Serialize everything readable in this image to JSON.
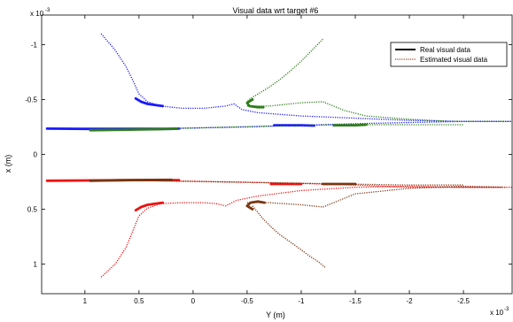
{
  "chart_data": {
    "type": "line",
    "title": "Visual data wrt target #6",
    "xlabel": "Y (m)",
    "ylabel": "x (m)",
    "x_exponent": "x 10",
    "x_exponent_power": "-3",
    "y_exponent": "x 10",
    "y_exponent_power": "-3",
    "xlim": [
      -2.95,
      1.4
    ],
    "ylim": [
      -1.27,
      1.27
    ],
    "x_reversed": true,
    "y_reversed": true,
    "x_ticks": [
      1,
      0.5,
      0,
      -0.5,
      -1,
      -1.5,
      -2,
      -2.5
    ],
    "x_tick_labels": [
      "1",
      "0.5",
      "0",
      "-0.5",
      "-1",
      "-1.5",
      "-2",
      "-2.5"
    ],
    "y_ticks": [
      -1,
      -0.5,
      0,
      0.5,
      1
    ],
    "y_tick_labels": [
      "-1",
      "-0.5",
      "0",
      "0.5",
      "1"
    ],
    "grid": false,
    "legend_position": "top-right",
    "legend": [
      {
        "label": "Real visual data",
        "style": "solid"
      },
      {
        "label": "Estimated visual data",
        "style": "dotted"
      }
    ],
    "colors": {
      "blue": "#1a1aff",
      "green": "#2e7d1a",
      "red": "#ee1111",
      "brown": "#7a3510"
    },
    "series": [
      {
        "color": "blue",
        "style": "dotted",
        "x": [
          0.85,
          0.72,
          0.62,
          0.55,
          0.5,
          0.42,
          0.3,
          0.1,
          -0.1,
          -0.3,
          -0.38,
          -0.45,
          -0.6,
          -1.0,
          -1.5,
          -2.0,
          -2.5,
          -2.95
        ],
        "y": [
          -1.1,
          -0.95,
          -0.8,
          -0.66,
          -0.55,
          -0.48,
          -0.44,
          -0.42,
          -0.42,
          -0.44,
          -0.46,
          -0.41,
          -0.38,
          -0.35,
          -0.33,
          -0.31,
          -0.3,
          -0.3
        ]
      },
      {
        "color": "blue",
        "style": "solid",
        "x": [
          0.53,
          0.48,
          0.42,
          0.35,
          0.28
        ],
        "y": [
          -0.51,
          -0.48,
          -0.46,
          -0.45,
          -0.44
        ]
      },
      {
        "color": "blue",
        "style": "solid",
        "x": [
          1.35,
          1.0,
          0.6,
          0.2,
          0.13
        ],
        "y": [
          -0.235,
          -0.232,
          -0.232,
          -0.232,
          -0.235
        ]
      },
      {
        "color": "blue",
        "style": "solid",
        "x": [
          -0.75,
          -1.0,
          -1.12
        ],
        "y": [
          -0.265,
          -0.265,
          -0.262
        ]
      },
      {
        "color": "blue",
        "style": "dotted",
        "x": [
          0.8,
          0.4,
          0.0,
          -0.5,
          -1.0,
          -1.5,
          -2.0,
          -2.5,
          -2.85
        ],
        "y": [
          -0.23,
          -0.235,
          -0.24,
          -0.25,
          -0.265,
          -0.28,
          -0.29,
          -0.3,
          -0.3
        ]
      },
      {
        "color": "green",
        "style": "dotted",
        "x": [
          -1.2,
          -1.1,
          -1.0,
          -0.9,
          -0.8,
          -0.7,
          -0.6,
          -0.53,
          -0.5
        ],
        "y": [
          -1.05,
          -0.95,
          -0.85,
          -0.76,
          -0.68,
          -0.61,
          -0.55,
          -0.51,
          -0.48
        ]
      },
      {
        "color": "green",
        "style": "dotted",
        "x": [
          -0.5,
          -0.7,
          -1.0,
          -1.2,
          -1.4,
          -1.6,
          -2.0,
          -2.4,
          -2.8,
          -2.95
        ],
        "y": [
          -0.44,
          -0.44,
          -0.47,
          -0.48,
          -0.4,
          -0.35,
          -0.32,
          -0.3,
          -0.3,
          -0.3
        ]
      },
      {
        "color": "green",
        "style": "solid",
        "x": [
          -0.55,
          -0.5,
          -0.52,
          -0.6,
          -0.65
        ],
        "y": [
          -0.5,
          -0.47,
          -0.44,
          -0.43,
          -0.43
        ]
      },
      {
        "color": "green",
        "style": "solid",
        "x": [
          0.95,
          0.6,
          0.3,
          0.15
        ],
        "y": [
          -0.22,
          -0.225,
          -0.23,
          -0.235
        ]
      },
      {
        "color": "green",
        "style": "solid",
        "x": [
          -1.3,
          -1.5,
          -1.6
        ],
        "y": [
          -0.265,
          -0.265,
          -0.27
        ]
      },
      {
        "color": "green",
        "style": "dotted",
        "x": [
          0.9,
          0.4,
          -0.2,
          -0.8,
          -1.4,
          -2.0,
          -2.5
        ],
        "y": [
          -0.22,
          -0.23,
          -0.245,
          -0.26,
          -0.27,
          -0.27,
          -0.27
        ]
      },
      {
        "color": "red",
        "style": "dotted",
        "x": [
          0.85,
          0.72,
          0.62,
          0.55,
          0.5,
          0.42,
          0.3,
          0.1,
          -0.1,
          -0.22,
          -0.3,
          -0.4,
          -0.6,
          -1.0,
          -1.5,
          -2.0,
          -2.5,
          -2.95
        ],
        "y": [
          1.12,
          1.0,
          0.85,
          0.68,
          0.56,
          0.49,
          0.45,
          0.44,
          0.44,
          0.45,
          0.47,
          0.42,
          0.38,
          0.33,
          0.3,
          0.29,
          0.3,
          0.3
        ]
      },
      {
        "color": "red",
        "style": "solid",
        "x": [
          0.53,
          0.48,
          0.42,
          0.35,
          0.28
        ],
        "y": [
          0.51,
          0.48,
          0.46,
          0.45,
          0.44
        ]
      },
      {
        "color": "red",
        "style": "solid",
        "x": [
          1.35,
          1.0,
          0.6,
          0.2,
          0.13
        ],
        "y": [
          0.24,
          0.238,
          0.235,
          0.235,
          0.235
        ]
      },
      {
        "color": "red",
        "style": "solid",
        "x": [
          -0.72,
          -0.9,
          -1.0
        ],
        "y": [
          0.27,
          0.27,
          0.27
        ]
      },
      {
        "color": "red",
        "style": "dotted",
        "x": [
          0.8,
          0.4,
          0.0,
          -0.5,
          -1.0,
          -1.5,
          -2.0,
          -2.5,
          -2.85
        ],
        "y": [
          0.235,
          0.24,
          0.245,
          0.255,
          0.265,
          0.28,
          0.3,
          0.3,
          0.3
        ]
      },
      {
        "color": "brown",
        "style": "dotted",
        "x": [
          -0.55,
          -0.6,
          -0.65,
          -0.72,
          -0.8,
          -0.9,
          -1.0,
          -1.08,
          -1.16,
          -1.22
        ],
        "y": [
          0.47,
          0.53,
          0.59,
          0.66,
          0.73,
          0.8,
          0.87,
          0.93,
          0.98,
          1.03
        ]
      },
      {
        "color": "brown",
        "style": "dotted",
        "x": [
          -0.5,
          -0.7,
          -1.0,
          -1.2,
          -1.3,
          -1.5,
          -2.0,
          -2.5,
          -2.9
        ],
        "y": [
          0.44,
          0.44,
          0.46,
          0.48,
          0.44,
          0.36,
          0.31,
          0.29,
          0.3
        ]
      },
      {
        "color": "brown",
        "style": "solid",
        "x": [
          -0.55,
          -0.5,
          -0.53,
          -0.6,
          -0.66
        ],
        "y": [
          0.5,
          0.47,
          0.44,
          0.43,
          0.44
        ]
      },
      {
        "color": "brown",
        "style": "solid",
        "x": [
          0.95,
          0.7,
          0.4,
          0.2
        ],
        "y": [
          0.24,
          0.236,
          0.233,
          0.232
        ]
      },
      {
        "color": "brown",
        "style": "solid",
        "x": [
          -1.2,
          -1.35,
          -1.5
        ],
        "y": [
          0.27,
          0.27,
          0.27
        ]
      },
      {
        "color": "brown",
        "style": "dotted",
        "x": [
          0.9,
          0.4,
          -0.2,
          -0.8,
          -1.4,
          -2.0,
          -2.5
        ],
        "y": [
          0.235,
          0.24,
          0.25,
          0.26,
          0.27,
          0.28,
          0.28
        ]
      }
    ]
  }
}
